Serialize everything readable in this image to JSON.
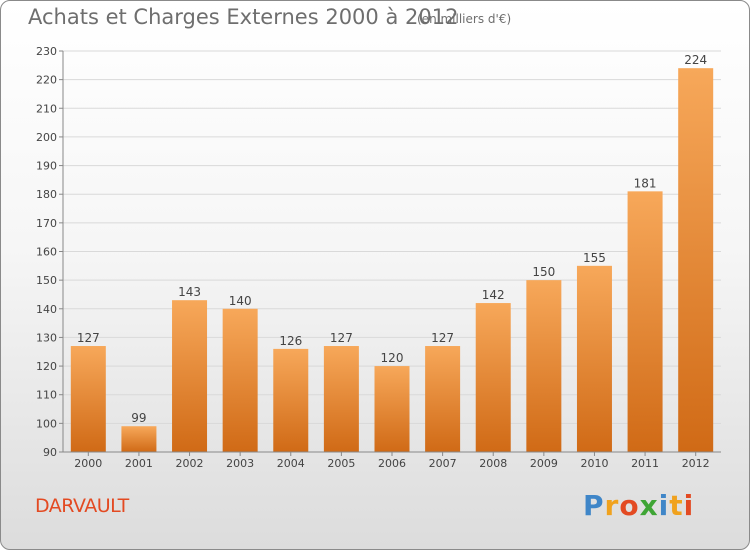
{
  "header": {
    "title": "Achats et Charges Externes 2000 à 2012",
    "subtitle": "(en milliers d'€)"
  },
  "footer": {
    "commune": "DARVAULT",
    "logo_letters": [
      "P",
      "r",
      "o",
      "x",
      "i",
      "t",
      "i"
    ],
    "logo_colors": [
      "#3f86c8",
      "#f0a21e",
      "#e34a22",
      "#3fa535",
      "#3f86c8",
      "#f0a21e",
      "#e34a22"
    ]
  },
  "colors": {
    "bar_top": "#f7a85a",
    "bar_bottom": "#d06a16",
    "grid": "#d9d9d9",
    "axis": "#888888"
  },
  "chart_data": {
    "type": "bar",
    "categories": [
      "2000",
      "2001",
      "2002",
      "2003",
      "2004",
      "2005",
      "2006",
      "2007",
      "2008",
      "2009",
      "2010",
      "2011",
      "2012"
    ],
    "values": [
      127,
      99,
      143,
      140,
      126,
      127,
      120,
      127,
      142,
      150,
      155,
      181,
      224
    ],
    "ylim": [
      90,
      230
    ],
    "yticks": [
      90,
      100,
      110,
      120,
      130,
      140,
      150,
      160,
      170,
      180,
      190,
      200,
      210,
      220,
      230
    ],
    "grid": true,
    "value_labels": true
  }
}
